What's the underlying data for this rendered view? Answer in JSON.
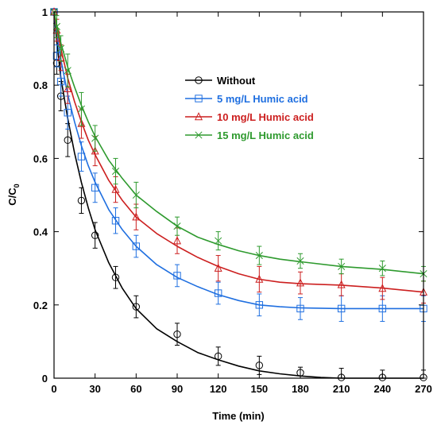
{
  "chart_data": {
    "type": "line",
    "xlabel": "Time (min)",
    "ylabel_main": "C/C",
    "ylabel_sub": "0",
    "xlim": [
      0,
      270
    ],
    "ylim": [
      0,
      1
    ],
    "xticks": [
      0,
      30,
      60,
      90,
      120,
      150,
      180,
      210,
      240,
      270
    ],
    "yticks": [
      0,
      0.2,
      0.4,
      0.6,
      0.8,
      1
    ],
    "ytick_labels": [
      "0",
      "0.2",
      "0.4",
      "0.6",
      "0.8",
      "1"
    ],
    "grid": false,
    "legend_position": "upper-middle-right",
    "series": [
      {
        "name": "Without",
        "color": "#000000",
        "marker": "circle",
        "x": [
          0,
          2,
          5,
          10,
          20,
          30,
          45,
          60,
          90,
          120,
          150,
          180,
          210,
          240,
          270
        ],
        "y": [
          1.0,
          0.86,
          0.77,
          0.65,
          0.485,
          0.39,
          0.275,
          0.195,
          0.12,
          0.06,
          0.035,
          0.015,
          0.002,
          0.002,
          0.002
        ],
        "err": [
          0,
          0.03,
          0.04,
          0.045,
          0.035,
          0.035,
          0.03,
          0.03,
          0.03,
          0.025,
          0.025,
          0.015,
          0.025,
          0.02,
          0.02
        ],
        "fit_x": [
          0,
          2,
          5,
          10,
          15,
          20,
          25,
          30,
          40,
          50,
          60,
          75,
          90,
          105,
          120,
          135,
          150,
          165,
          180,
          195,
          210,
          240,
          270
        ],
        "fit_y": [
          1.0,
          0.92,
          0.82,
          0.71,
          0.615,
          0.535,
          0.465,
          0.405,
          0.315,
          0.245,
          0.19,
          0.135,
          0.1,
          0.07,
          0.05,
          0.033,
          0.02,
          0.012,
          0.006,
          0.002,
          0.0,
          0.0,
          0.0
        ]
      },
      {
        "name": "5 mg/L Humic acid",
        "color": "#1f6fe0",
        "marker": "square",
        "x": [
          0,
          2,
          5,
          10,
          20,
          30,
          45,
          60,
          90,
          120,
          150,
          180,
          210,
          240,
          270
        ],
        "y": [
          1.0,
          0.88,
          0.81,
          0.725,
          0.605,
          0.52,
          0.43,
          0.36,
          0.28,
          0.232,
          0.2,
          0.19,
          0.19,
          0.19,
          0.19
        ],
        "err": [
          0,
          0.03,
          0.04,
          0.045,
          0.04,
          0.04,
          0.035,
          0.03,
          0.03,
          0.03,
          0.03,
          0.03,
          0.035,
          0.035,
          0.035
        ],
        "fit_x": [
          0,
          2,
          5,
          10,
          15,
          20,
          25,
          30,
          40,
          50,
          60,
          75,
          90,
          105,
          120,
          135,
          150,
          165,
          180,
          210,
          240,
          270
        ],
        "fit_y": [
          1.0,
          0.94,
          0.87,
          0.775,
          0.7,
          0.635,
          0.58,
          0.535,
          0.46,
          0.405,
          0.36,
          0.31,
          0.275,
          0.25,
          0.228,
          0.212,
          0.2,
          0.195,
          0.192,
          0.19,
          0.19,
          0.19
        ]
      },
      {
        "name": "10 mg/L Humic acid",
        "color": "#cc1f1f",
        "marker": "triangle",
        "x": [
          0,
          2,
          5,
          10,
          20,
          30,
          45,
          60,
          90,
          120,
          150,
          180,
          210,
          240,
          270
        ],
        "y": [
          1.0,
          0.95,
          0.875,
          0.79,
          0.695,
          0.62,
          0.515,
          0.44,
          0.375,
          0.3,
          0.27,
          0.26,
          0.255,
          0.245,
          0.235
        ],
        "err": [
          0,
          0.03,
          0.035,
          0.04,
          0.04,
          0.04,
          0.035,
          0.035,
          0.035,
          0.035,
          0.035,
          0.03,
          0.03,
          0.03,
          0.03
        ],
        "fit_x": [
          0,
          2,
          5,
          10,
          15,
          20,
          25,
          30,
          40,
          50,
          60,
          75,
          90,
          105,
          120,
          135,
          150,
          165,
          180,
          210,
          240,
          270
        ],
        "fit_y": [
          1.0,
          0.955,
          0.9,
          0.82,
          0.755,
          0.7,
          0.65,
          0.61,
          0.54,
          0.485,
          0.44,
          0.395,
          0.36,
          0.33,
          0.305,
          0.285,
          0.27,
          0.262,
          0.258,
          0.254,
          0.246,
          0.235
        ]
      },
      {
        "name": "15 mg/L Humic acid",
        "color": "#2e9a2e",
        "marker": "x",
        "x": [
          0,
          2,
          5,
          10,
          20,
          30,
          45,
          60,
          90,
          120,
          150,
          180,
          210,
          240,
          270
        ],
        "y": [
          1.0,
          0.96,
          0.9,
          0.84,
          0.735,
          0.655,
          0.565,
          0.5,
          0.415,
          0.375,
          0.335,
          0.32,
          0.305,
          0.3,
          0.285
        ],
        "err": [
          0,
          0.03,
          0.035,
          0.045,
          0.045,
          0.035,
          0.035,
          0.035,
          0.025,
          0.025,
          0.025,
          0.02,
          0.02,
          0.02,
          0.02
        ],
        "fit_x": [
          0,
          2,
          5,
          10,
          15,
          20,
          25,
          30,
          40,
          50,
          60,
          75,
          90,
          105,
          120,
          135,
          150,
          165,
          180,
          210,
          240,
          270
        ],
        "fit_y": [
          1.0,
          0.965,
          0.915,
          0.85,
          0.795,
          0.745,
          0.7,
          0.66,
          0.595,
          0.545,
          0.5,
          0.455,
          0.415,
          0.385,
          0.365,
          0.348,
          0.335,
          0.325,
          0.318,
          0.305,
          0.297,
          0.285
        ]
      }
    ]
  }
}
